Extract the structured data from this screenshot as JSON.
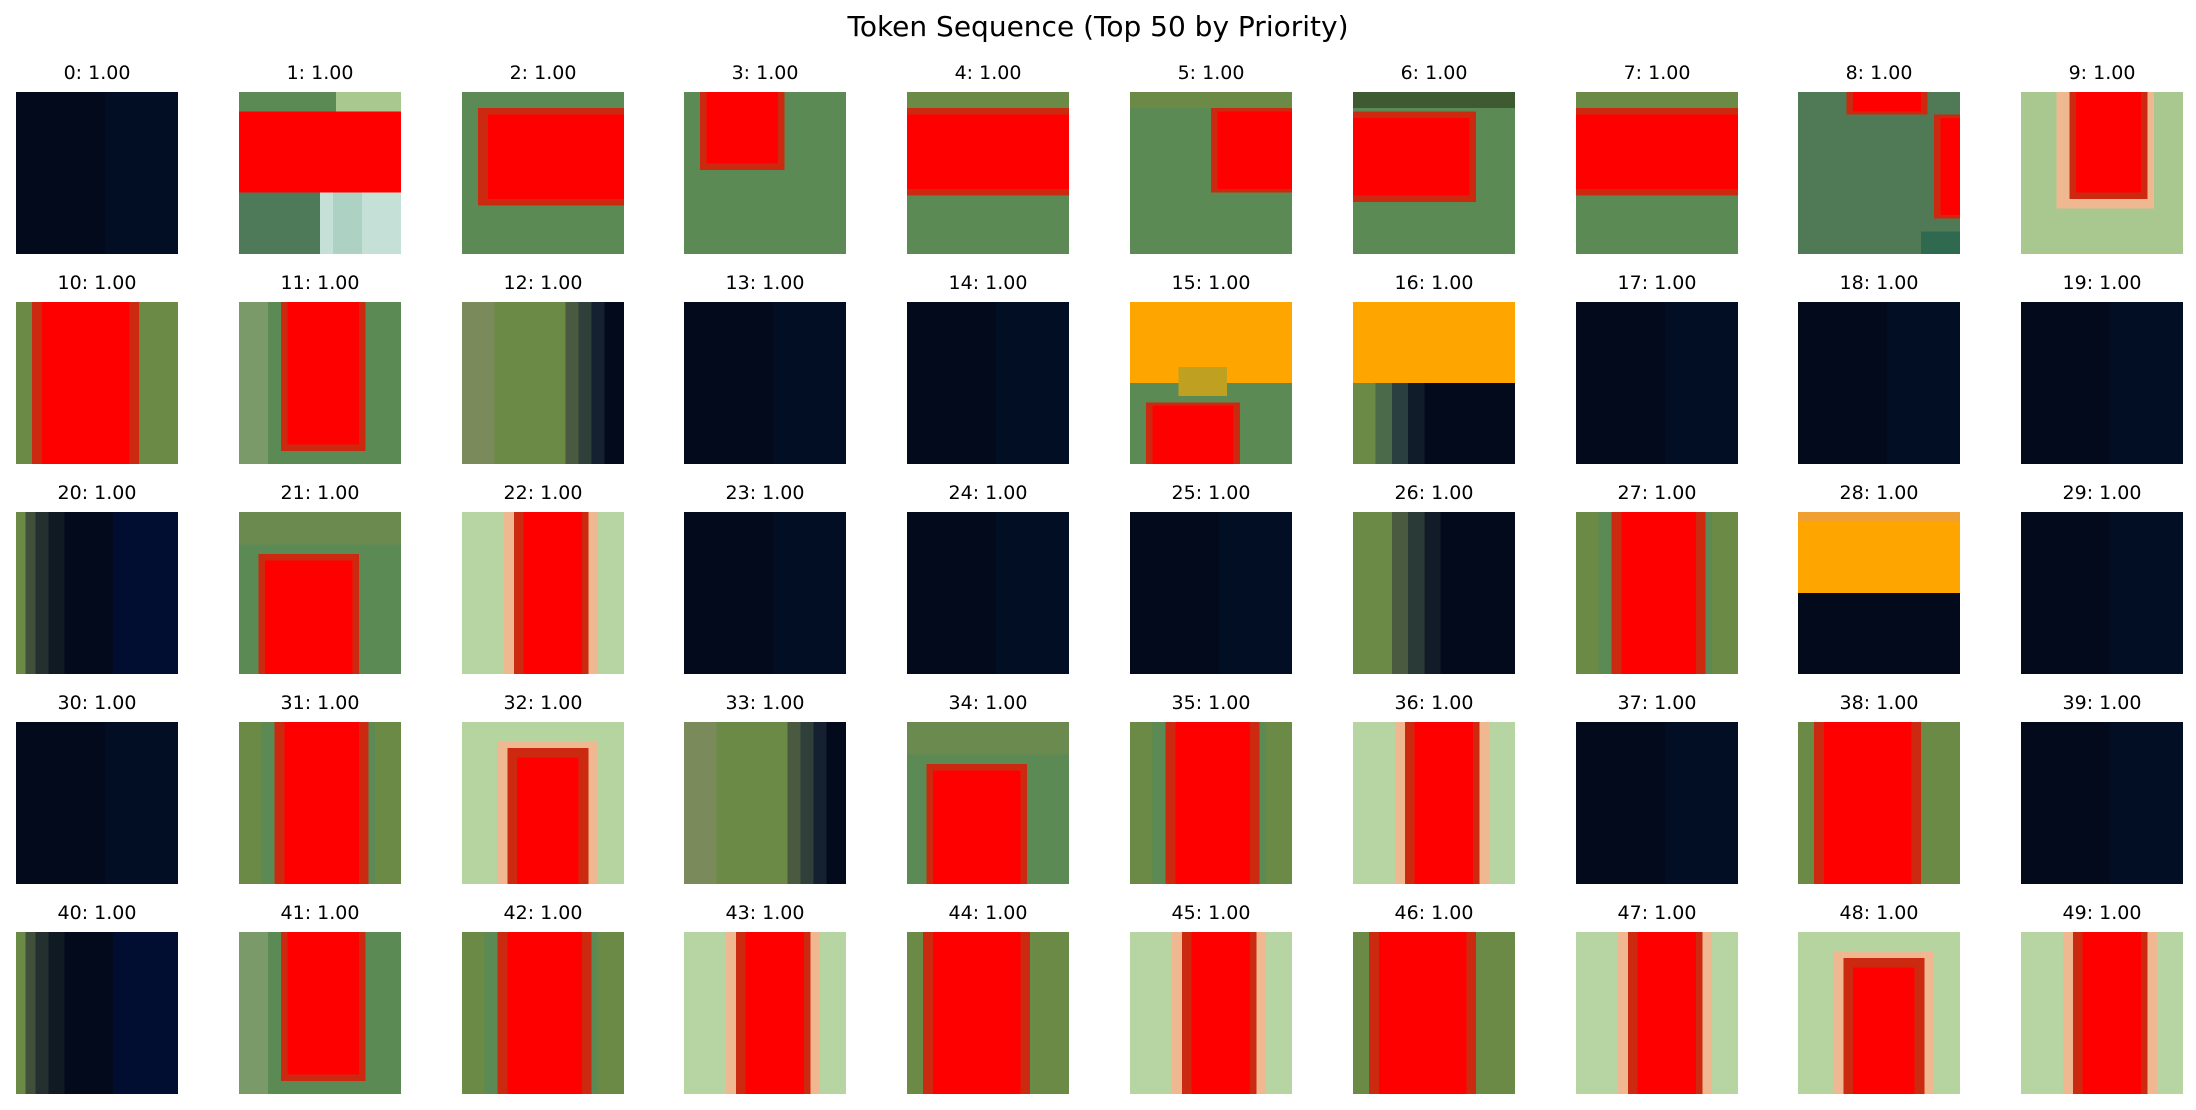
{
  "title": "Token Sequence (Top 50 by Priority)",
  "colors": {
    "dark": "#020a1c",
    "red": "#ff0000",
    "darkred": "#cc2a10",
    "orange": "#ffa500",
    "green": "#5b8a55",
    "olive": "#6b8a45",
    "lightgreen": "#a8c890",
    "pale": "#c6e2b4",
    "peach": "#f0b890",
    "ice": "#d2ece4"
  },
  "tokens": [
    {
      "index": 0,
      "label": "0: 1.00",
      "pattern": "dark"
    },
    {
      "index": 1,
      "label": "1: 1.00",
      "pattern": "band-mid-white-corner"
    },
    {
      "index": 2,
      "label": "2: 1.00",
      "pattern": "block-center"
    },
    {
      "index": 3,
      "label": "3: 1.00",
      "pattern": "block-top-left"
    },
    {
      "index": 4,
      "label": "4: 1.00",
      "pattern": "band-mid"
    },
    {
      "index": 5,
      "label": "5: 1.00",
      "pattern": "block-right"
    },
    {
      "index": 6,
      "label": "6: 1.00",
      "pattern": "block-left"
    },
    {
      "index": 7,
      "label": "7: 1.00",
      "pattern": "band-mid"
    },
    {
      "index": 8,
      "label": "8: 1.00",
      "pattern": "top-right-edges"
    },
    {
      "index": 9,
      "label": "9: 1.00",
      "pattern": "light-top-block"
    },
    {
      "index": 10,
      "label": "10: 1.00",
      "pattern": "vstripe-left"
    },
    {
      "index": 11,
      "label": "11: 1.00",
      "pattern": "vstripe-short"
    },
    {
      "index": 12,
      "label": "12: 1.00",
      "pattern": "green-to-dark-right"
    },
    {
      "index": 13,
      "label": "13: 1.00",
      "pattern": "dark"
    },
    {
      "index": 14,
      "label": "14: 1.00",
      "pattern": "dark"
    },
    {
      "index": 15,
      "label": "15: 1.00",
      "pattern": "orange-top-red-bottom"
    },
    {
      "index": 16,
      "label": "16: 1.00",
      "pattern": "orange-top-dark-bottom"
    },
    {
      "index": 17,
      "label": "17: 1.00",
      "pattern": "dark"
    },
    {
      "index": 18,
      "label": "18: 1.00",
      "pattern": "dark"
    },
    {
      "index": 19,
      "label": "19: 1.00",
      "pattern": "dark"
    },
    {
      "index": 20,
      "label": "20: 1.00",
      "pattern": "dark-green-left"
    },
    {
      "index": 21,
      "label": "21: 1.00",
      "pattern": "block-bottom"
    },
    {
      "index": 22,
      "label": "22: 1.00",
      "pattern": "vstripe-light"
    },
    {
      "index": 23,
      "label": "23: 1.00",
      "pattern": "dark"
    },
    {
      "index": 24,
      "label": "24: 1.00",
      "pattern": "dark"
    },
    {
      "index": 25,
      "label": "25: 1.00",
      "pattern": "dark"
    },
    {
      "index": 26,
      "label": "26: 1.00",
      "pattern": "green-left-dark"
    },
    {
      "index": 27,
      "label": "27: 1.00",
      "pattern": "vstripe-center"
    },
    {
      "index": 28,
      "label": "28: 1.00",
      "pattern": "orange-mid-dark-bottom"
    },
    {
      "index": 29,
      "label": "29: 1.00",
      "pattern": "dark"
    },
    {
      "index": 30,
      "label": "30: 1.00",
      "pattern": "dark"
    },
    {
      "index": 31,
      "label": "31: 1.00",
      "pattern": "vstripe-center"
    },
    {
      "index": 32,
      "label": "32: 1.00",
      "pattern": "light-bottom-block"
    },
    {
      "index": 33,
      "label": "33: 1.00",
      "pattern": "green-to-dark-right"
    },
    {
      "index": 34,
      "label": "34: 1.00",
      "pattern": "block-bottom"
    },
    {
      "index": 35,
      "label": "35: 1.00",
      "pattern": "vstripe-center"
    },
    {
      "index": 36,
      "label": "36: 1.00",
      "pattern": "vstripe-light"
    },
    {
      "index": 37,
      "label": "37: 1.00",
      "pattern": "dark"
    },
    {
      "index": 38,
      "label": "38: 1.00",
      "pattern": "vstripe-left"
    },
    {
      "index": 39,
      "label": "39: 1.00",
      "pattern": "dark"
    },
    {
      "index": 40,
      "label": "40: 1.00",
      "pattern": "dark-green-left"
    },
    {
      "index": 41,
      "label": "41: 1.00",
      "pattern": "vstripe-short"
    },
    {
      "index": 42,
      "label": "42: 1.00",
      "pattern": "vstripe-center"
    },
    {
      "index": 43,
      "label": "43: 1.00",
      "pattern": "vstripe-light"
    },
    {
      "index": 44,
      "label": "44: 1.00",
      "pattern": "vstripe-left"
    },
    {
      "index": 45,
      "label": "45: 1.00",
      "pattern": "vstripe-light"
    },
    {
      "index": 46,
      "label": "46: 1.00",
      "pattern": "vstripe-left"
    },
    {
      "index": 47,
      "label": "47: 1.00",
      "pattern": "vstripe-light"
    },
    {
      "index": 48,
      "label": "48: 1.00",
      "pattern": "light-bottom-block"
    },
    {
      "index": 49,
      "label": "49: 1.00",
      "pattern": "vstripe-light"
    }
  ]
}
